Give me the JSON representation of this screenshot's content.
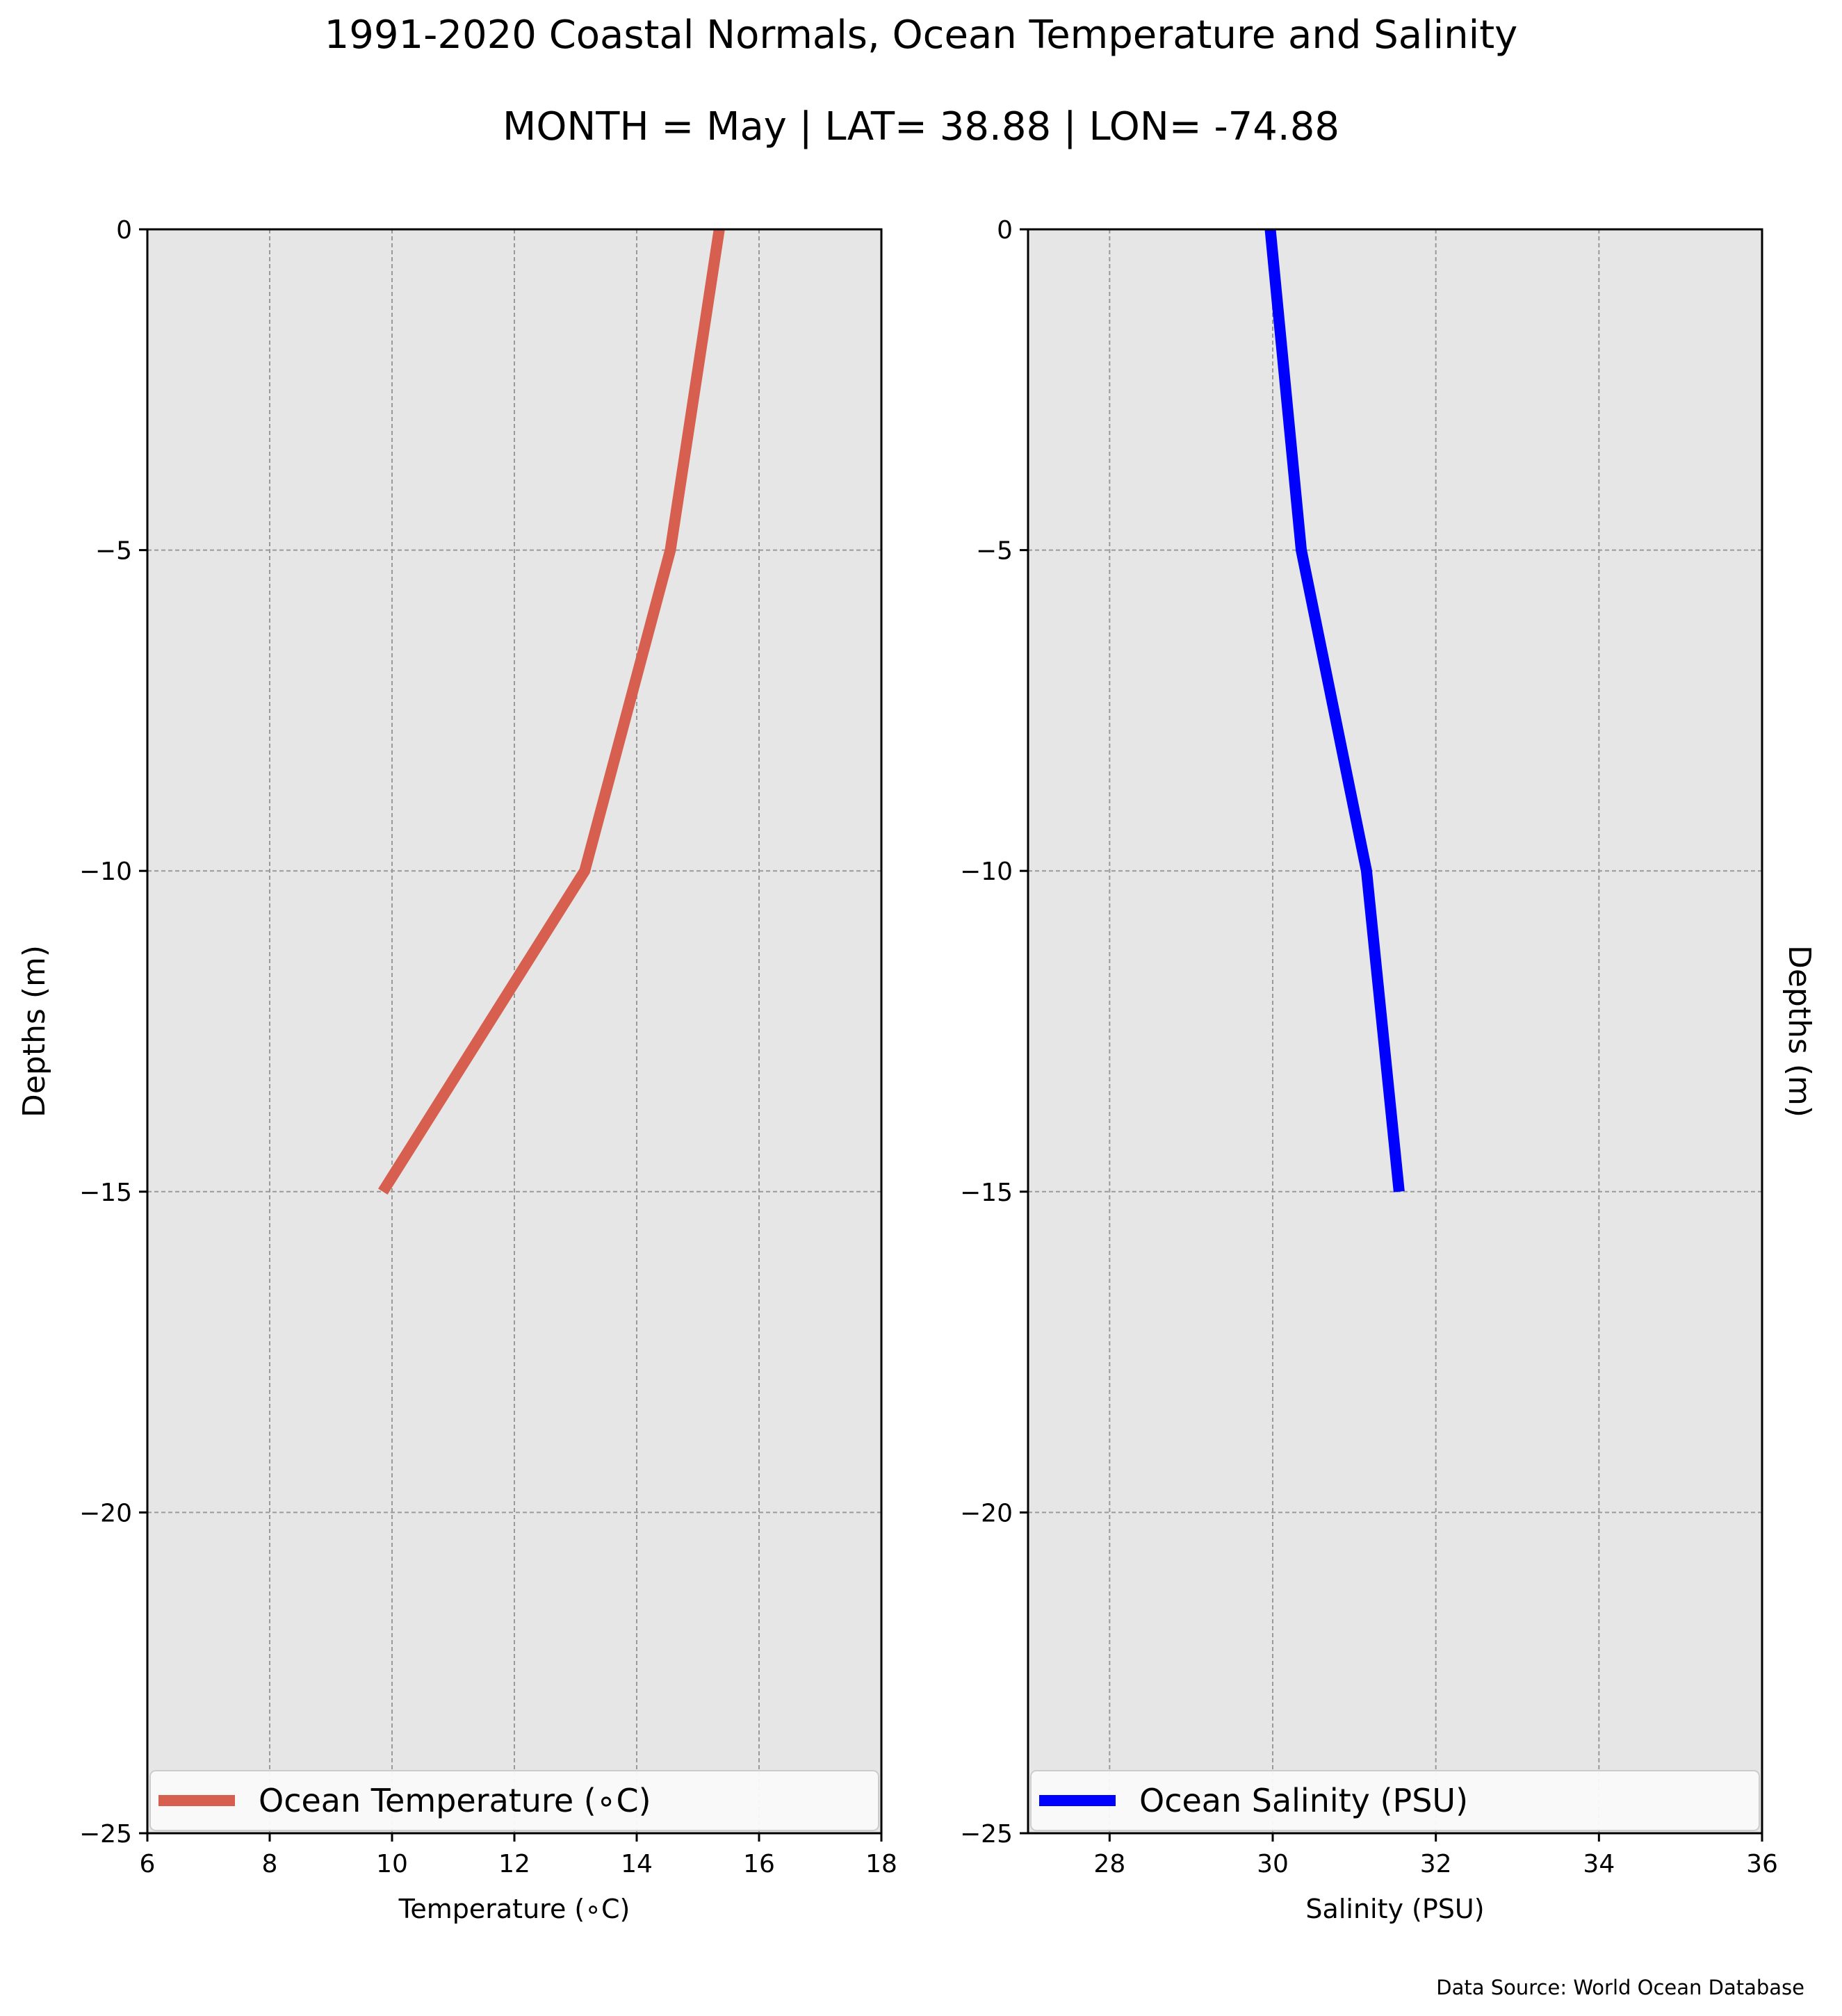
{
  "title": "1991-2020 Coastal Normals, Ocean Temperature and Salinity",
  "subtitle": "MONTH = May | LAT= 38.88 | LON= -74.88",
  "source_note": "Data Source: World Ocean Database",
  "chart_data": [
    {
      "type": "line",
      "xlabel": "Temperature (∘C)",
      "ylabel": "Depths (m)",
      "xlim": [
        6,
        18
      ],
      "ylim": [
        -25,
        0
      ],
      "xticks": [
        6,
        8,
        10,
        12,
        14,
        16,
        18
      ],
      "yticks": [
        0,
        -5,
        -10,
        -15,
        -20,
        -25
      ],
      "grid": true,
      "legend_position": "bottom",
      "series": [
        {
          "name": "Ocean Temperature (∘C)",
          "color": "#d65f4f",
          "x": [
            15.35,
            14.55,
            13.15,
            9.85
          ],
          "y": [
            0,
            -5,
            -10,
            -15
          ]
        }
      ]
    },
    {
      "type": "line",
      "xlabel": "Salinity (PSU)",
      "ylabel": "Depths (m)",
      "xlim": [
        27,
        36
      ],
      "ylim": [
        -25,
        0
      ],
      "xticks": [
        28,
        30,
        32,
        34,
        36
      ],
      "yticks": [
        0,
        -5,
        -10,
        -15,
        -20,
        -25
      ],
      "grid": true,
      "legend_position": "bottom",
      "series": [
        {
          "name": "Ocean Salinity (PSU)",
          "color": "#0000ff",
          "x": [
            29.97,
            30.35,
            31.15,
            31.55
          ],
          "y": [
            0,
            -5,
            -10,
            -15
          ]
        }
      ]
    }
  ]
}
